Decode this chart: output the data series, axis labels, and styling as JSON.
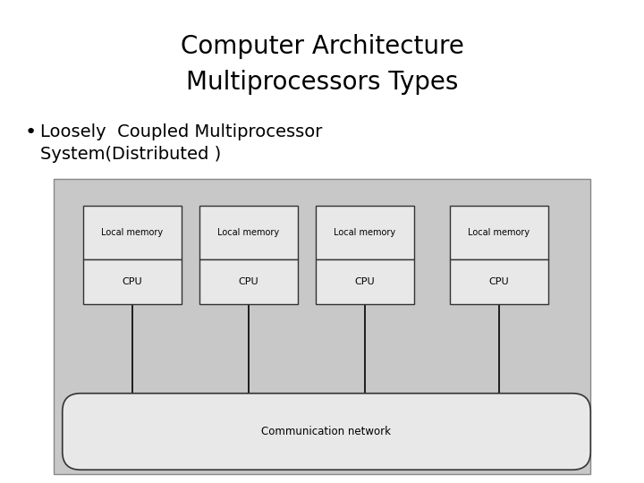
{
  "title_line1": "Computer Architecture",
  "title_line2": "Multiprocessors Types",
  "bullet_line1": "Loosely  Coupled Multiprocessor",
  "bullet_line2": "System(Distributed )",
  "title_fontsize": 20,
  "bullet_fontsize": 14,
  "background_color": "#ffffff",
  "diagram_bg": "#c8c8c8",
  "box_facecolor": "#e8e8e8",
  "box_edgecolor": "#333333",
  "cpu_labels": [
    "CPU",
    "CPU",
    "CPU",
    "CPU"
  ],
  "mem_labels": [
    "Local memory",
    "Local memory",
    "Local memory",
    "Local memory"
  ],
  "network_label": "Communication network"
}
